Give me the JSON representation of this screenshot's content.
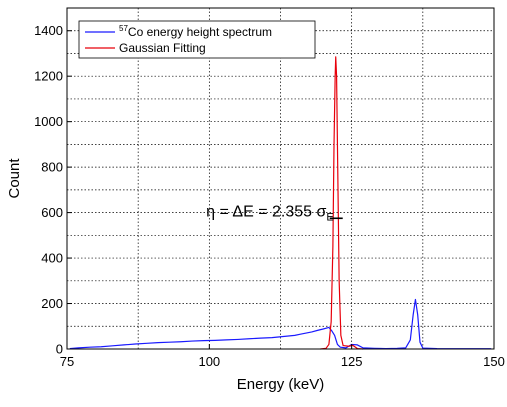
{
  "chart_data": {
    "type": "line",
    "xlabel": "Energy (keV)",
    "ylabel": "Count",
    "xlim": [
      75,
      150
    ],
    "ylim": [
      0,
      1500
    ],
    "xticks": [
      75,
      100,
      125,
      150
    ],
    "yticks": [
      0,
      200,
      400,
      600,
      800,
      1000,
      1200,
      1400
    ],
    "grid": "dotted",
    "legend": {
      "position": "top-left",
      "entries": [
        {
          "sup": "57",
          "label": "Co energy height spectrum",
          "color": "#1a1aff"
        },
        {
          "label": "Gaussian Fitting",
          "color": "#e8000b"
        }
      ]
    },
    "annotation": {
      "eta": "η",
      "eq1": " = ",
      "delta": "Δ",
      "mid": "E = 2.355 ",
      "sigma": "σ",
      "sub": "E",
      "marker_x": 122.2,
      "marker_y": 575
    },
    "series": [
      {
        "name": "57Co energy height spectrum",
        "color": "#1a1aff",
        "points": [
          [
            75.5,
            2
          ],
          [
            77,
            5
          ],
          [
            79,
            8
          ],
          [
            81,
            10
          ],
          [
            83,
            14
          ],
          [
            85,
            18
          ],
          [
            87,
            22
          ],
          [
            89,
            25
          ],
          [
            91,
            28
          ],
          [
            93,
            30
          ],
          [
            95,
            32
          ],
          [
            97,
            35
          ],
          [
            99,
            37
          ],
          [
            101,
            38
          ],
          [
            103,
            40
          ],
          [
            105,
            42
          ],
          [
            107,
            45
          ],
          [
            109,
            48
          ],
          [
            111,
            50
          ],
          [
            113,
            55
          ],
          [
            115,
            60
          ],
          [
            116,
            65
          ],
          [
            117,
            70
          ],
          [
            118,
            75
          ],
          [
            119,
            82
          ],
          [
            120,
            88
          ],
          [
            121,
            95
          ],
          [
            121.5,
            80
          ],
          [
            122,
            60
          ],
          [
            122.5,
            20
          ],
          [
            123,
            8
          ],
          [
            124,
            5
          ],
          [
            125,
            20
          ],
          [
            126,
            18
          ],
          [
            127,
            5
          ],
          [
            129,
            3
          ],
          [
            131,
            2
          ],
          [
            133,
            3
          ],
          [
            134.5,
            5
          ],
          [
            135.3,
            40
          ],
          [
            135.8,
            150
          ],
          [
            136.2,
            218
          ],
          [
            136.6,
            150
          ],
          [
            137,
            30
          ],
          [
            137.5,
            4
          ],
          [
            140,
            2
          ],
          [
            145,
            1
          ],
          [
            149.5,
            1
          ]
        ]
      },
      {
        "name": "Gaussian Fitting",
        "color": "#e8000b",
        "points": [
          [
            119.5,
            0
          ],
          [
            120.5,
            3
          ],
          [
            121,
            20
          ],
          [
            121.4,
            120
          ],
          [
            121.7,
            450
          ],
          [
            121.9,
            900
          ],
          [
            122.1,
            1200
          ],
          [
            122.2,
            1285
          ],
          [
            122.35,
            1200
          ],
          [
            122.55,
            800
          ],
          [
            122.8,
            300
          ],
          [
            123.1,
            60
          ],
          [
            123.5,
            15
          ],
          [
            124.5,
            12
          ],
          [
            125.2,
            16
          ],
          [
            126,
            2
          ],
          [
            127,
            0
          ]
        ]
      }
    ]
  }
}
